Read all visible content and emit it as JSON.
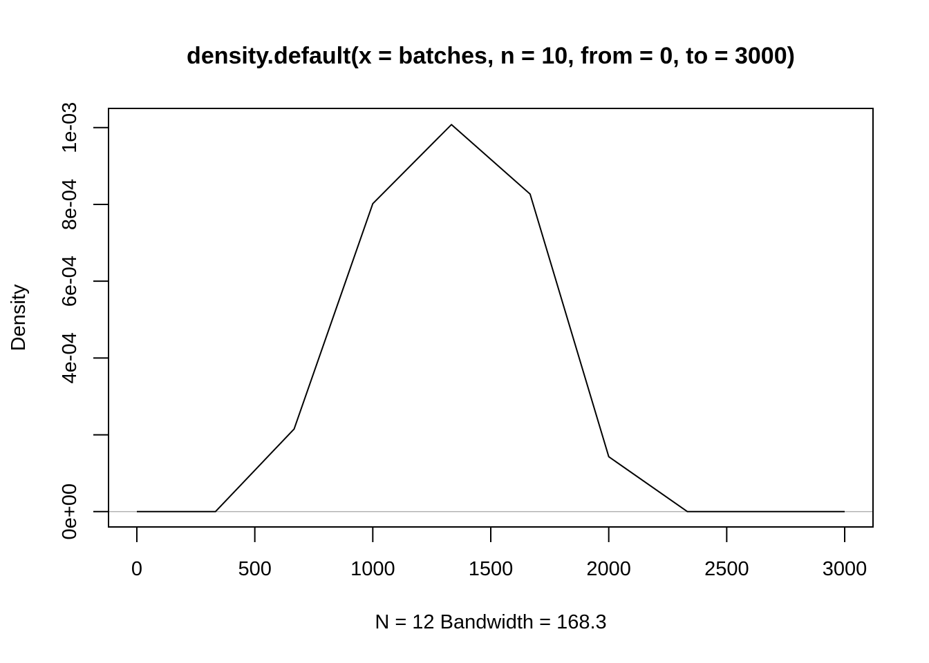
{
  "chart_data": {
    "type": "line",
    "title": "density.default(x = batches, n = 10, from = 0, to = 3000)",
    "xlabel": "N = 12   Bandwidth = 168.3",
    "ylabel": "Density",
    "xlim": [
      -120,
      3120
    ],
    "ylim": [
      -4e-05,
      0.00105
    ],
    "x_ticks": [
      0,
      500,
      1000,
      1500,
      2000,
      2500,
      3000
    ],
    "x_tick_labels": [
      "0",
      "500",
      "1000",
      "1500",
      "2000",
      "2500",
      "3000"
    ],
    "y_ticks": [
      0,
      0.0002,
      0.0004,
      0.0006,
      0.0008,
      0.001
    ],
    "y_tick_labels": [
      "0e+00",
      "",
      "4e-04",
      "6e-04",
      "8e-04",
      "1e-03"
    ],
    "baseline": 0,
    "baseline_color": "#b3b3b3",
    "line_color": "#000000",
    "grid": false,
    "legend": "none",
    "series": [
      {
        "x": [
          0,
          333.3,
          666.7,
          1000,
          1333.3,
          1666.7,
          2000,
          2333.3,
          2666.7,
          3000
        ],
        "values": [
          0.0,
          0.0,
          0.000215,
          0.000802,
          0.001008,
          0.000827,
          0.000143,
          0.0,
          0.0,
          0.0
        ]
      }
    ]
  }
}
